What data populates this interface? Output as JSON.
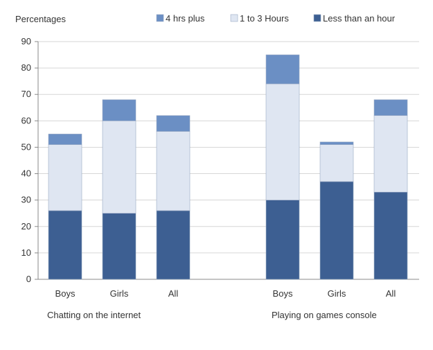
{
  "chart_data": {
    "type": "bar",
    "stacked": true,
    "ylabel": "Percentages",
    "ylim": [
      0,
      90
    ],
    "yticks": [
      0,
      10,
      20,
      30,
      40,
      50,
      60,
      70,
      80,
      90
    ],
    "grid": true,
    "legend_position": "top-right",
    "groups": [
      {
        "label": "Chatting on the internet",
        "categories": [
          "Boys",
          "Girls",
          "All"
        ]
      },
      {
        "label": "Playing on games console",
        "categories": [
          "Boys",
          "Girls",
          "All"
        ]
      }
    ],
    "series": [
      {
        "name": "Less than an hour",
        "color": "#3d5f92",
        "values": [
          26,
          25,
          26,
          30,
          37,
          33
        ]
      },
      {
        "name": "1 to 3 Hours",
        "color": "#dfe6f2",
        "values": [
          25,
          35,
          30,
          44,
          14,
          29
        ]
      },
      {
        "name": "4 hrs plus",
        "color": "#6b8fc4",
        "values": [
          4,
          8,
          6,
          11,
          1,
          6
        ]
      }
    ],
    "legend_order": [
      "4 hrs plus",
      "1 to 3 Hours",
      "Less than an hour"
    ]
  }
}
